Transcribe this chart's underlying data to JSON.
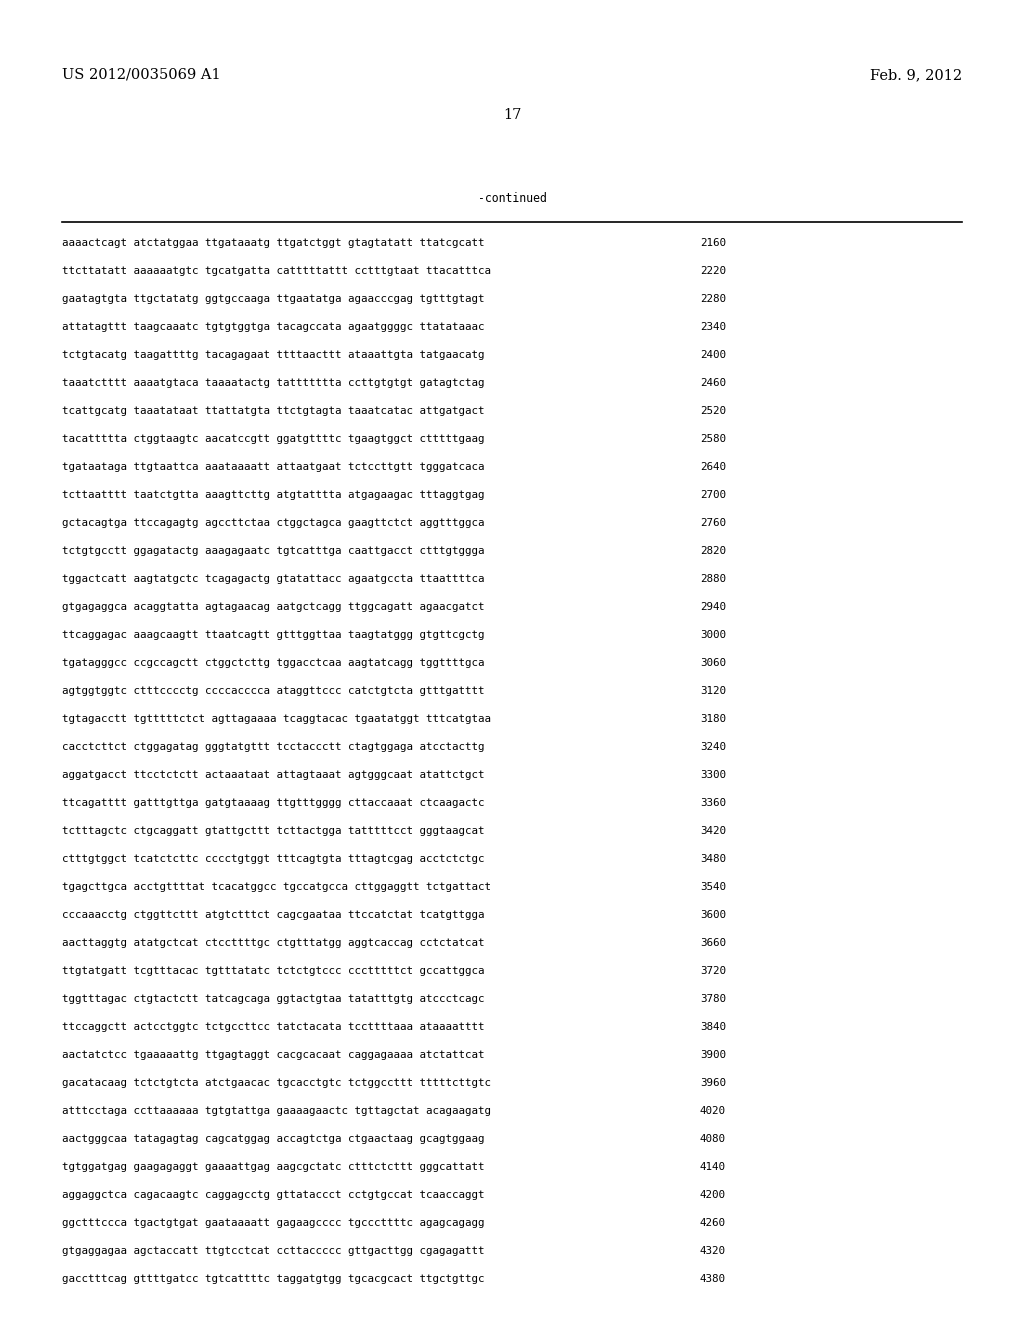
{
  "header_left": "US 2012/0035069 A1",
  "header_right": "Feb. 9, 2012",
  "page_number": "17",
  "continued_label": "-continued",
  "background_color": "#ffffff",
  "text_color": "#000000",
  "font_size_header": 10.5,
  "font_size_body": 7.8,
  "font_size_page": 10.5,
  "sequence_lines": [
    [
      "aaaactcagt atctatggaa ttgataaatg ttgatctggt gtagtatatt ttatcgcatt",
      "2160"
    ],
    [
      "ttcttatatt aaaaaatgtc tgcatgatta catttttattt cctttgtaat ttacatttca",
      "2220"
    ],
    [
      "gaatagtgta ttgctatatg ggtgccaaga ttgaatatga agaacccgag tgtttgtagt",
      "2280"
    ],
    [
      "attatagttt taagcaaatc tgtgtggtga tacagccata agaatggggc ttatataaac",
      "2340"
    ],
    [
      "tctgtacatg taagattttg tacagagaat ttttaacttt ataaattgta tatgaacatg",
      "2400"
    ],
    [
      "taaatctttt aaaatgtaca taaaatactg tattttttta ccttgtgtgt gatagtctag",
      "2460"
    ],
    [
      "tcattgcatg taaatataat ttattatgta ttctgtagta taaatcatac attgatgact",
      "2520"
    ],
    [
      "tacattttta ctggtaagtc aacatccgtt ggatgttttc tgaagtggct ctttttgaag",
      "2580"
    ],
    [
      "tgataataga ttgtaattca aaataaaatt attaatgaat tctccttgtt tgggatcaca",
      "2640"
    ],
    [
      "tcttaatttt taatctgtta aaagttcttg atgtatttta atgagaagac tttaggtgag",
      "2700"
    ],
    [
      "gctacagtga ttccagagtg agccttctaa ctggctagca gaagttctct aggtttggca",
      "2760"
    ],
    [
      "tctgtgcctt ggagatactg aaagagaatc tgtcatttga caattgacct ctttgtggga",
      "2820"
    ],
    [
      "tggactcatt aagtatgctc tcagagactg gtatattacc agaatgccta ttaattttca",
      "2880"
    ],
    [
      "gtgagaggca acaggtatta agtagaacag aatgctcagg ttggcagatt agaacgatct",
      "2940"
    ],
    [
      "ttcaggagac aaagcaagtt ttaatcagtt gtttggttaa taagtatggg gtgttcgctg",
      "3000"
    ],
    [
      "tgatagggcc ccgccagctt ctggctcttg tggacctcaa aagtatcagg tggttttgca",
      "3060"
    ],
    [
      "agtggtggtc ctttcccctg ccccacccca ataggttccc catctgtcta gtttgatttt",
      "3120"
    ],
    [
      "tgtagacctt tgtttttctct agttagaaaa tcaggtacac tgaatatggt tttcatgtaa",
      "3180"
    ],
    [
      "cacctcttct ctggagatag gggtatgttt tcctaccctt ctagtggaga atcctacttg",
      "3240"
    ],
    [
      "aggatgacct ttcctctctt actaaataat attagtaaat agtgggcaat atattctgct",
      "3300"
    ],
    [
      "ttcagatttt gatttgttga gatgtaaaag ttgtttgggg cttaccaaat ctcaagactc",
      "3360"
    ],
    [
      "tctttagctc ctgcaggatt gtattgcttt tcttactgga tatttttcct gggtaagcat",
      "3420"
    ],
    [
      "ctttgtggct tcatctcttc cccctgtggt tttcagtgta tttagtcgag acctctctgc",
      "3480"
    ],
    [
      "tgagcttgca acctgttttat tcacatggcc tgccatgcca cttggaggtt tctgattact",
      "3540"
    ],
    [
      "cccaaacctg ctggttcttt atgtctttct cagcgaataa ttccatctat tcatgttgga",
      "3600"
    ],
    [
      "aacttaggtg atatgctcat ctccttttgc ctgtttatgg aggtcaccag cctctatcat",
      "3660"
    ],
    [
      "ttgtatgatt tcgtttacac tgtttatatc tctctgtccc ccctttttct gccattggca",
      "3720"
    ],
    [
      "tggtttagac ctgtactctt tatcagcaga ggtactgtaa tatatttgtg atccctcagc",
      "3780"
    ],
    [
      "ttccaggctt actcctggtc tctgccttcc tatctacata tccttttaaa ataaaatttt",
      "3840"
    ],
    [
      "aactatctcc tgaaaaattg ttgagtaggt cacgcacaat caggagaaaa atctattcat",
      "3900"
    ],
    [
      "gacatacaag tctctgtcta atctgaacac tgcacctgtc tctggccttt tttttcttgtc",
      "3960"
    ],
    [
      "atttcctaga ccttaaaaaa tgtgtattga gaaaagaactc tgttagctat acagaagatg",
      "4020"
    ],
    [
      "aactgggcaa tatagagtag cagcatggag accagtctga ctgaactaag gcagtggaag",
      "4080"
    ],
    [
      "tgtggatgag gaagagaggt gaaaattgag aagcgctatc ctttctcttt gggcattatt",
      "4140"
    ],
    [
      "aggaggctca cagacaagtc caggagcctg gttataccct cctgtgccat tcaaccaggt",
      "4200"
    ],
    [
      "ggctttccca tgactgtgat gaataaaatt gagaagcccc tgcccttttc agagcagagg",
      "4260"
    ],
    [
      "gtgaggagaa agctaccatt ttgtcctcat ccttaccccc gttgacttgg cgagagattt",
      "4320"
    ],
    [
      "gacctttcag gttttgatcc tgtcattttc taggatgtgg tgcacgcact ttgctgttgc",
      "4380"
    ]
  ]
}
